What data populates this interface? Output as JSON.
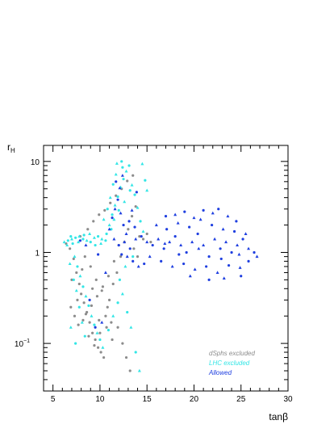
{
  "chart_data": {
    "type": "scatter",
    "title": "",
    "xlabel": "tanβ",
    "ylabel": "r",
    "ylabel_sub": "H",
    "xlim": [
      4,
      30
    ],
    "ylim": [
      0.03,
      15
    ],
    "y_log": true,
    "grid": false,
    "legend_position": "bottom-right",
    "x_ticks": [
      5,
      10,
      15,
      20,
      25,
      30
    ],
    "x_tick_labels": [
      "5",
      "10",
      "15",
      "20",
      "25",
      "30"
    ],
    "y_ticks": [
      0.1,
      1,
      10
    ],
    "y_tick_labels_main": [
      "10",
      "1",
      "10"
    ],
    "y_tick_labels_sup": [
      "−1",
      "",
      ""
    ],
    "series": [
      {
        "name": "dSphs excluded",
        "color": "#8c8c8c",
        "marker": "circle",
        "points": [
          [
            6.4,
            1.25
          ],
          [
            6.8,
            1.1
          ],
          [
            7.2,
            0.85
          ],
          [
            7.5,
            0.6
          ],
          [
            7.8,
            0.45
          ],
          [
            8.0,
            0.35
          ],
          [
            8.3,
            0.28
          ],
          [
            8.6,
            0.22
          ],
          [
            8.9,
            0.17
          ],
          [
            9.2,
            0.13
          ],
          [
            9.5,
            0.11
          ],
          [
            9.8,
            0.09
          ],
          [
            10.1,
            0.08
          ],
          [
            10.4,
            0.07
          ],
          [
            7.0,
            0.5
          ],
          [
            7.6,
            0.3
          ],
          [
            8.2,
            0.18
          ],
          [
            8.8,
            0.12
          ],
          [
            9.4,
            0.095
          ],
          [
            10.0,
            0.13
          ],
          [
            10.6,
            0.2
          ],
          [
            11.0,
            0.3
          ],
          [
            11.4,
            0.45
          ],
          [
            11.8,
            0.6
          ],
          [
            12.2,
            0.9
          ],
          [
            12.6,
            1.3
          ],
          [
            13.0,
            1.8
          ],
          [
            13.4,
            2.5
          ],
          [
            13.8,
            3.2
          ],
          [
            14.2,
            1.5
          ],
          [
            14.6,
            1.4
          ],
          [
            15.0,
            1.6
          ],
          [
            15.4,
            1.3
          ],
          [
            9.0,
            0.7
          ],
          [
            9.6,
            0.5
          ],
          [
            10.2,
            0.38
          ],
          [
            10.8,
            0.25
          ],
          [
            11.2,
            0.17
          ],
          [
            8.4,
            0.9
          ],
          [
            7.9,
            1.5
          ],
          [
            8.7,
            1.8
          ],
          [
            9.3,
            2.2
          ],
          [
            9.9,
            2.6
          ],
          [
            10.5,
            2.9
          ],
          [
            11.1,
            3.5
          ],
          [
            11.7,
            4.2
          ],
          [
            12.3,
            5.0
          ],
          [
            12.9,
            6.1
          ],
          [
            13.5,
            7.0
          ],
          [
            12.0,
            1.2
          ],
          [
            11.5,
            0.8
          ],
          [
            10.9,
            0.55
          ],
          [
            10.3,
            0.42
          ],
          [
            9.7,
            0.33
          ],
          [
            9.1,
            0.26
          ],
          [
            8.5,
            0.21
          ],
          [
            7.7,
            0.16
          ],
          [
            7.3,
            0.2
          ],
          [
            6.9,
            0.25
          ],
          [
            11.9,
            0.15
          ],
          [
            12.4,
            0.1
          ],
          [
            12.8,
            0.07
          ],
          [
            13.2,
            0.05
          ],
          [
            10.7,
            0.15
          ],
          [
            11.3,
            0.11
          ],
          [
            9.9,
            0.18
          ],
          [
            9.2,
            0.4
          ],
          [
            8.1,
            0.65
          ],
          [
            13.6,
            1.1
          ],
          [
            14.0,
            0.9
          ]
        ]
      },
      {
        "name": "LHC excluded",
        "color": "#33e6e6",
        "marker": "mixed",
        "points": [
          [
            6.2,
            1.3
          ],
          [
            6.6,
            1.35
          ],
          [
            7.0,
            1.4
          ],
          [
            7.4,
            1.45
          ],
          [
            7.8,
            1.5
          ],
          [
            8.2,
            1.4
          ],
          [
            8.6,
            1.35
          ],
          [
            9.0,
            1.3
          ],
          [
            9.4,
            1.45
          ],
          [
            9.8,
            1.5
          ],
          [
            10.2,
            1.4
          ],
          [
            10.6,
            1.35
          ],
          [
            6.5,
            1.2
          ],
          [
            7.1,
            1.25
          ],
          [
            7.7,
            1.3
          ],
          [
            8.3,
            1.55
          ],
          [
            8.9,
            1.6
          ],
          [
            9.5,
            1.2
          ],
          [
            10.1,
            1.25
          ],
          [
            10.7,
            1.6
          ],
          [
            11.0,
            2.0
          ],
          [
            11.3,
            2.6
          ],
          [
            11.6,
            3.3
          ],
          [
            11.9,
            4.1
          ],
          [
            12.2,
            5.2
          ],
          [
            12.5,
            6.4
          ],
          [
            12.8,
            7.8
          ],
          [
            13.1,
            9.0
          ],
          [
            11.8,
            9.5
          ],
          [
            12.4,
            8.6
          ],
          [
            13.4,
            5.5
          ],
          [
            13.7,
            4.3
          ],
          [
            14.0,
            3.1
          ],
          [
            14.3,
            2.2
          ],
          [
            14.6,
            1.7
          ],
          [
            11.2,
            1.8
          ],
          [
            11.5,
            2.3
          ],
          [
            12.0,
            2.9
          ],
          [
            12.6,
            3.6
          ],
          [
            13.2,
            4.8
          ],
          [
            7.3,
            0.9
          ],
          [
            7.6,
            0.7
          ],
          [
            7.9,
            0.55
          ],
          [
            8.2,
            0.42
          ],
          [
            8.5,
            0.33
          ],
          [
            8.8,
            0.26
          ],
          [
            9.1,
            0.2
          ],
          [
            9.4,
            0.16
          ],
          [
            9.7,
            0.13
          ],
          [
            10.0,
            0.11
          ],
          [
            6.8,
            0.75
          ],
          [
            7.2,
            0.5
          ],
          [
            7.5,
            0.38
          ],
          [
            7.8,
            0.25
          ],
          [
            8.1,
            0.17
          ],
          [
            8.4,
            0.12
          ],
          [
            6.9,
            0.15
          ],
          [
            7.4,
            0.1
          ],
          [
            10.3,
            0.09
          ],
          [
            10.9,
            0.14
          ],
          [
            11.4,
            0.2
          ],
          [
            11.9,
            0.28
          ],
          [
            12.4,
            0.35
          ],
          [
            12.9,
            0.22
          ],
          [
            13.3,
            0.15
          ],
          [
            13.8,
            0.08
          ],
          [
            14.2,
            0.05
          ],
          [
            12.1,
            0.5
          ],
          [
            12.7,
            0.7
          ],
          [
            13.5,
            0.9
          ],
          [
            10.4,
            2.3
          ],
          [
            10.8,
            3.0
          ],
          [
            11.1,
            4.0
          ],
          [
            11.4,
            5.6
          ],
          [
            11.7,
            7.2
          ],
          [
            12.3,
            10.0
          ],
          [
            14.5,
            9.4
          ],
          [
            14.8,
            6.2
          ],
          [
            15.0,
            4.8
          ],
          [
            6.9,
            1.5
          ]
        ]
      },
      {
        "name": "Allowed",
        "color": "#1f3fe0",
        "marker": "mixed",
        "points": [
          [
            11.0,
            1.8
          ],
          [
            11.3,
            2.4
          ],
          [
            11.6,
            3.0
          ],
          [
            11.9,
            3.8
          ],
          [
            12.2,
            2.7
          ],
          [
            12.5,
            2.0
          ],
          [
            12.8,
            1.6
          ],
          [
            13.1,
            2.2
          ],
          [
            13.4,
            2.9
          ],
          [
            13.7,
            1.9
          ],
          [
            11.5,
            1.4
          ],
          [
            12.0,
            1.2
          ],
          [
            12.6,
            1.3
          ],
          [
            13.2,
            1.1
          ],
          [
            13.8,
            1.4
          ],
          [
            14.4,
            1.5
          ],
          [
            15.0,
            1.3
          ],
          [
            15.6,
            1.2
          ],
          [
            16.2,
            1.4
          ],
          [
            16.8,
            1.1
          ],
          [
            17.4,
            1.3
          ],
          [
            18.0,
            1.5
          ],
          [
            18.6,
            1.2
          ],
          [
            19.2,
            1.0
          ],
          [
            19.8,
            1.3
          ],
          [
            20.4,
            1.6
          ],
          [
            21.0,
            1.2
          ],
          [
            21.6,
            0.9
          ],
          [
            22.2,
            1.4
          ],
          [
            22.8,
            1.1
          ],
          [
            23.4,
            1.3
          ],
          [
            24.0,
            1.0
          ],
          [
            24.6,
            1.2
          ],
          [
            25.2,
            1.4
          ],
          [
            25.8,
            1.1
          ],
          [
            26.4,
            1.0
          ],
          [
            26.7,
            0.9
          ],
          [
            17.1,
            1.8
          ],
          [
            18.3,
            2.1
          ],
          [
            19.5,
            1.9
          ],
          [
            20.7,
            2.3
          ],
          [
            21.9,
            2.0
          ],
          [
            23.1,
            1.8
          ],
          [
            24.3,
            1.7
          ],
          [
            25.5,
            1.6
          ],
          [
            16.5,
            0.8
          ],
          [
            17.7,
            0.7
          ],
          [
            18.9,
            0.75
          ],
          [
            20.1,
            0.65
          ],
          [
            21.3,
            0.7
          ],
          [
            22.5,
            0.6
          ],
          [
            23.7,
            0.72
          ],
          [
            24.9,
            0.68
          ],
          [
            25.8,
            0.8
          ],
          [
            16.0,
            2.0
          ],
          [
            17.0,
            2.5
          ],
          [
            18.0,
            2.6
          ],
          [
            19.0,
            2.8
          ],
          [
            20.0,
            2.4
          ],
          [
            21.0,
            2.9
          ],
          [
            22.0,
            2.7
          ],
          [
            22.6,
            3.0
          ],
          [
            23.6,
            2.5
          ],
          [
            24.5,
            2.2
          ],
          [
            15.3,
            0.9
          ],
          [
            14.7,
            0.75
          ],
          [
            14.1,
            0.7
          ],
          [
            13.5,
            0.8
          ],
          [
            12.9,
            0.9
          ],
          [
            12.3,
            0.95
          ],
          [
            19.6,
            0.55
          ],
          [
            21.6,
            0.5
          ],
          [
            23.2,
            0.52
          ],
          [
            25.0,
            0.55
          ],
          [
            20.5,
            1.1
          ],
          [
            18.4,
            0.95
          ],
          [
            16.9,
            1.25
          ],
          [
            22.9,
            0.85
          ],
          [
            24.8,
            0.95
          ],
          [
            13.9,
            4.6
          ],
          [
            12.1,
            5.1
          ],
          [
            11.7,
            6.0
          ],
          [
            12.4,
            7.0
          ],
          [
            9.5,
            0.15
          ],
          [
            10.2,
            0.17
          ],
          [
            8.9,
            0.3
          ],
          [
            10.6,
            0.6
          ],
          [
            9.8,
            0.95
          ],
          [
            8.5,
            1.2
          ],
          [
            7.9,
            1.35
          ]
        ]
      }
    ]
  }
}
